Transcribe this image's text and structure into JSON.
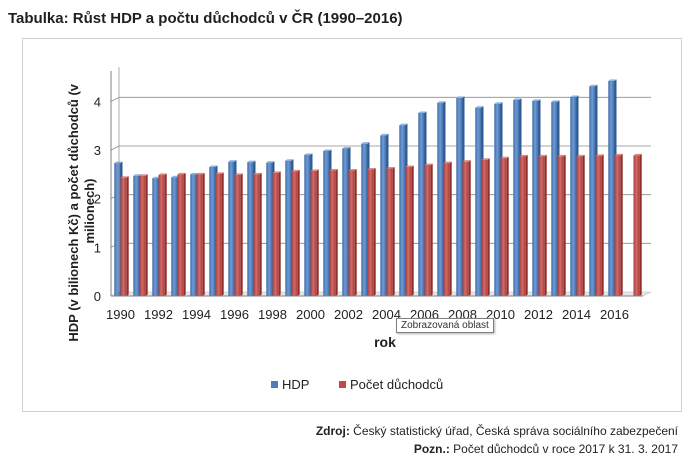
{
  "title": "Tabulka: Růst HDP a počtu důchodců v ČR (1990–2016)",
  "tooltip": "Zobrazovaná oblast",
  "footer": {
    "source_label": "Zdroj:",
    "source_text": " Český statistický úřad, Česká správa sociálního zabezpečení",
    "note_label": "Pozn.:",
    "note_text": " Počet důchodců v roce 2017 k 31. 3. 2017"
  },
  "colors": {
    "hdp": "#4a7ebb",
    "pocet": "#be4b48",
    "grid": "#8c8c8c"
  },
  "chart_data": {
    "type": "bar",
    "title": "",
    "xlabel": "rok",
    "ylabel": "HDP (v bilionech Kč) a počet důchodců (v milionech)",
    "ylim": [
      0,
      4.5
    ],
    "yticks": [
      0,
      1,
      2,
      3,
      4
    ],
    "grid": true,
    "legend": "bottom",
    "categories": [
      "1990",
      "1991",
      "1992",
      "1993",
      "1994",
      "1995",
      "1996",
      "1997",
      "1998",
      "1999",
      "2000",
      "2001",
      "2002",
      "2003",
      "2004",
      "2005",
      "2006",
      "2007",
      "2008",
      "2009",
      "2010",
      "2011",
      "2012",
      "2013",
      "2014",
      "2015",
      "2016",
      "2017"
    ],
    "xtick_labels": [
      "1990",
      "1992",
      "1994",
      "1996",
      "1998",
      "2000",
      "2002",
      "2004",
      "2006",
      "2008",
      "2010",
      "2012",
      "2014",
      "2016"
    ],
    "series": [
      {
        "name": "HDP",
        "values": [
          2.73,
          2.47,
          2.42,
          2.44,
          2.5,
          2.65,
          2.76,
          2.75,
          2.74,
          2.78,
          2.9,
          2.98,
          3.03,
          3.13,
          3.3,
          3.51,
          3.76,
          3.97,
          4.07,
          3.87,
          3.95,
          4.03,
          4.01,
          3.99,
          4.09,
          4.31,
          4.42,
          null
        ]
      },
      {
        "name": "Počet důchodců",
        "values": [
          2.43,
          2.47,
          2.49,
          2.5,
          2.5,
          2.51,
          2.49,
          2.5,
          2.53,
          2.56,
          2.57,
          2.58,
          2.58,
          2.6,
          2.62,
          2.65,
          2.69,
          2.73,
          2.76,
          2.8,
          2.83,
          2.87,
          2.87,
          2.87,
          2.87,
          2.88,
          2.89,
          2.89
        ]
      }
    ]
  }
}
